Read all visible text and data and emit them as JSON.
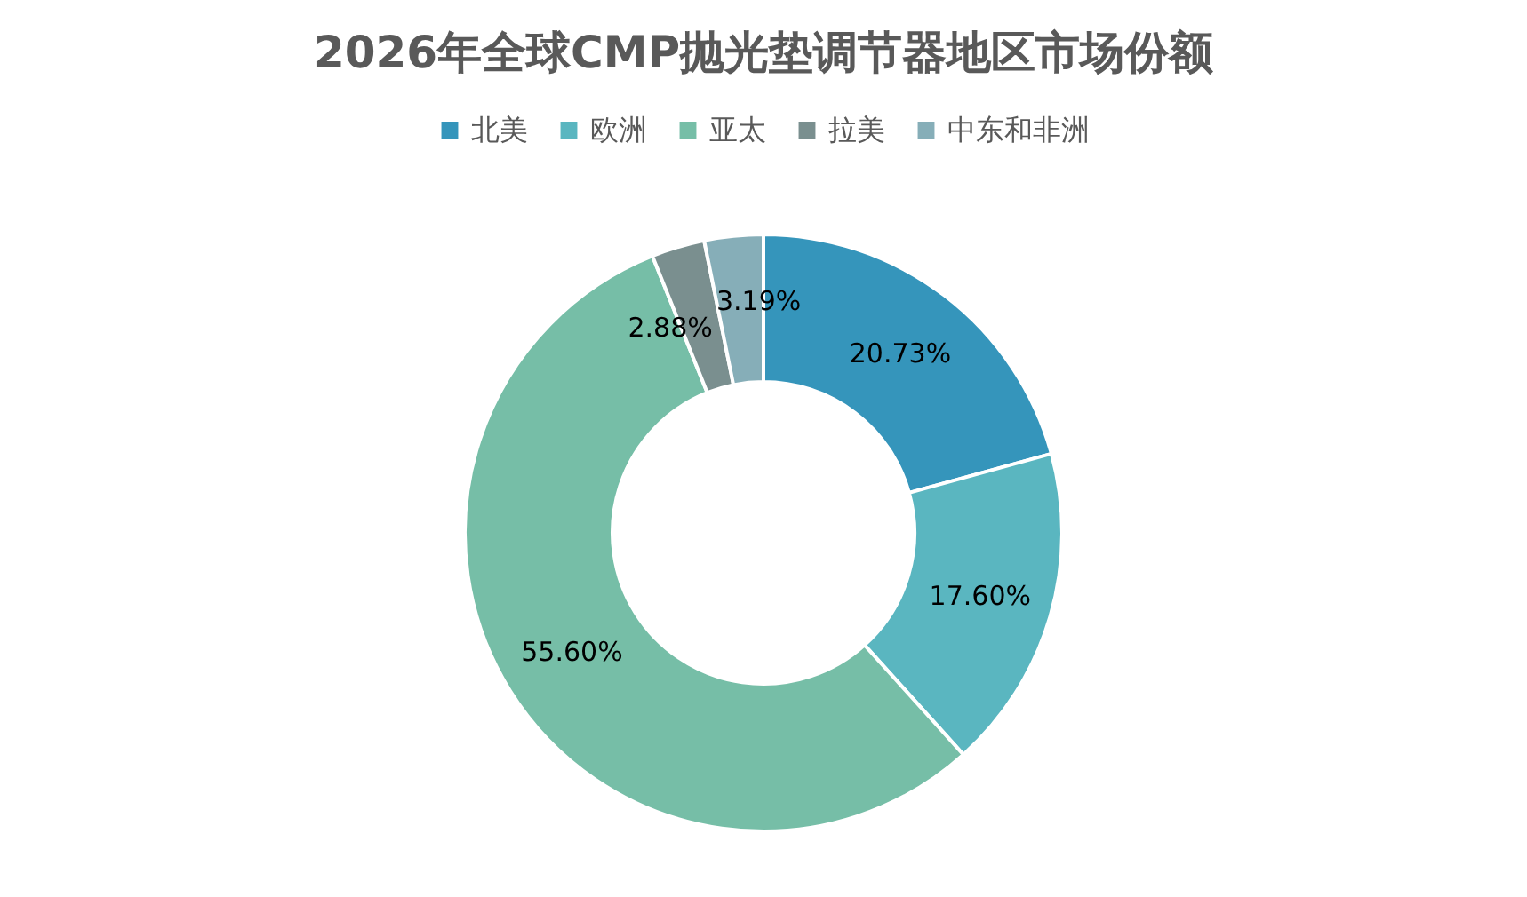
{
  "chart_data": {
    "type": "donut",
    "title": "2026年全球CMP抛光垫调节器地区市场份额",
    "categories": [
      "北美",
      "欧洲",
      "亚太",
      "拉美",
      "中东和非洲"
    ],
    "values": [
      20.73,
      17.6,
      55.6,
      2.88,
      3.19
    ],
    "value_labels": [
      "20.73%",
      "17.60%",
      "55.60%",
      "2.88%",
      "3.19%"
    ],
    "colors": [
      "#3595bb",
      "#5ab6c0",
      "#76bea7",
      "#7a8f8f",
      "#86aeb8"
    ],
    "legend": "top"
  }
}
